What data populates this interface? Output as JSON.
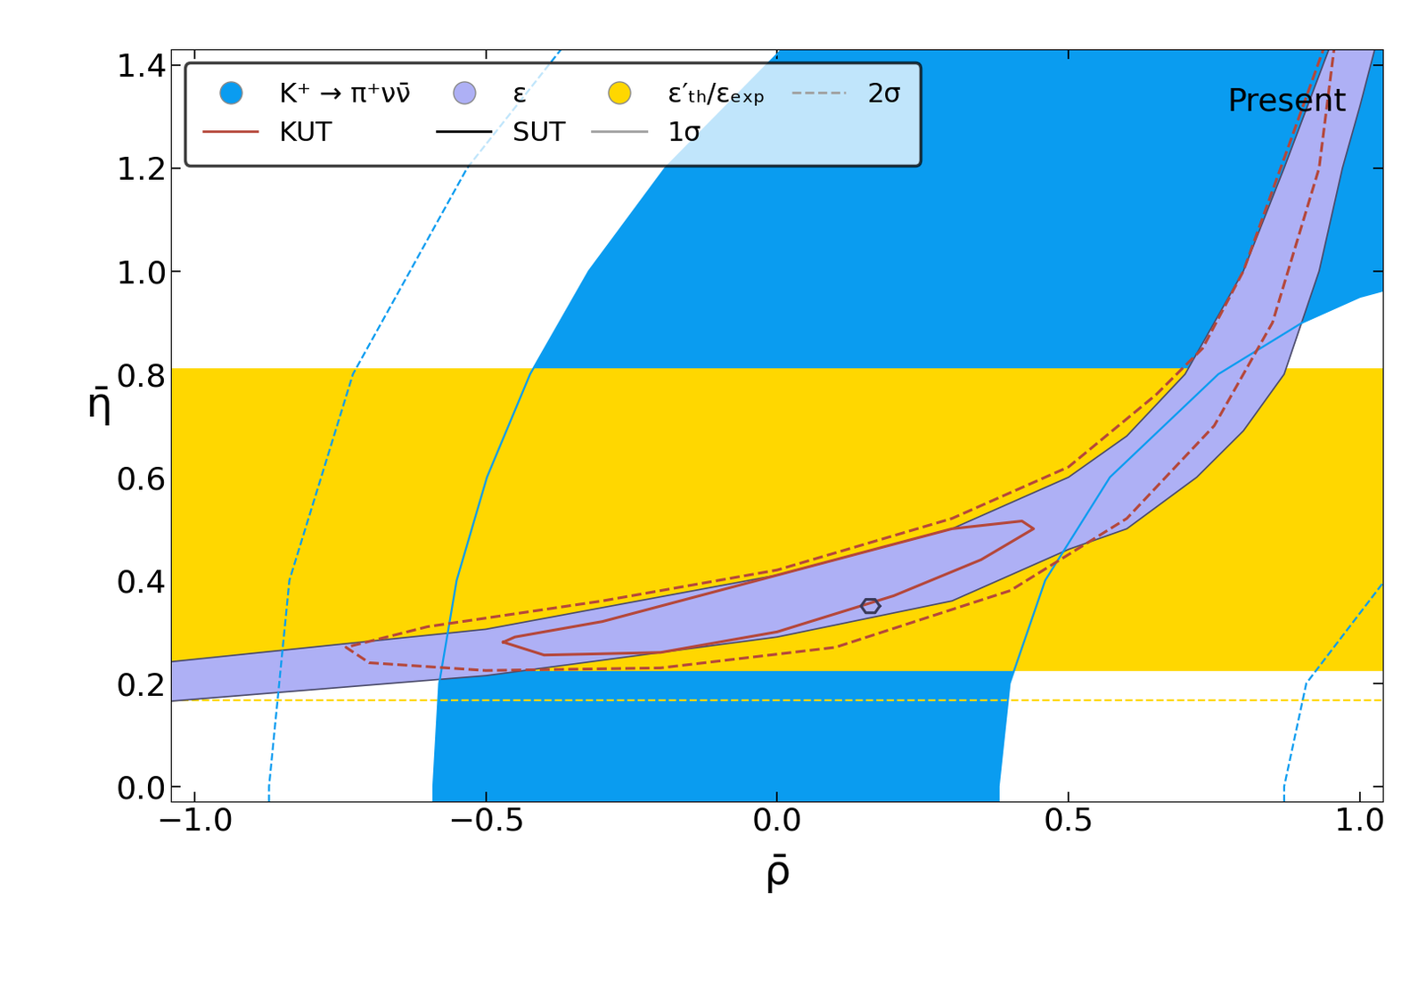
{
  "chart_data": {
    "type": "region",
    "xlabel": "ρ̄",
    "ylabel": "η̄",
    "xlim": [
      -1.04,
      1.04
    ],
    "ylim": [
      -0.03,
      1.43
    ],
    "xticks": [
      {
        "value": -1.0,
        "label": "−1.0"
      },
      {
        "value": -0.5,
        "label": "−0.5"
      },
      0.0,
      0.5,
      1.0
    ],
    "yticks": [
      0.0,
      0.2,
      0.4,
      0.6,
      0.8,
      1.0,
      1.2,
      1.4
    ],
    "annotation": "Present",
    "legend": "upper left",
    "line_styles_legend": [
      {
        "name": "1σ",
        "line_style": "solid"
      },
      {
        "name": "2σ",
        "line_style": "dashed"
      }
    ],
    "series": [
      {
        "name": "K⁺ → π⁺νν̄",
        "type": "annulus_band",
        "color": "#0a9cf0",
        "outer_1sigma": {
          "x": [
            -0.59,
            -0.59,
            -0.58,
            -0.55,
            -0.498,
            -0.424,
            -0.323,
            -0.192,
            0.008,
            0.205,
            0.528,
            1.24
          ],
          "y": [
            -0.05,
            0.0,
            0.2,
            0.4,
            0.6,
            0.8,
            1.0,
            1.2,
            1.43,
            1.6,
            1.8,
            2.0
          ]
        },
        "inner_1sigma": {
          "x": [
            0.38,
            0.38,
            0.399,
            0.46,
            0.571,
            0.757,
            0.901,
            1.0,
            1.228
          ],
          "y": [
            -0.05,
            0.0,
            0.2,
            0.4,
            0.6,
            0.8,
            0.9,
            0.95,
            1.02
          ]
        },
        "outer_2sigma": {
          "x": [
            -0.872,
            -0.872,
            -0.837,
            -0.728,
            -0.532,
            -0.371
          ],
          "y": [
            -0.05,
            0.0,
            0.4,
            0.8,
            1.2,
            1.43
          ]
        },
        "inner_2sigma": {
          "x": [
            0.87,
            0.87,
            0.908,
            1.043
          ],
          "y": [
            -0.05,
            0.0,
            0.2,
            0.4
          ]
        }
      },
      {
        "name": "ε′ₜₕ/εₑₓₚ",
        "type": "hband",
        "color": "#ffd700",
        "band_1sigma": [
          0.225,
          0.81
        ],
        "lower_2sigma": 0.168
      },
      {
        "name": "ε",
        "type": "band",
        "color": "#aeb0f5",
        "lower": {
          "x": [
            -1.1,
            -0.5,
            0.0,
            0.3,
            0.5,
            0.6,
            0.72,
            0.8,
            0.87,
            0.93,
            0.97,
            1.0,
            1.03
          ],
          "y": [
            0.16,
            0.215,
            0.29,
            0.36,
            0.46,
            0.5,
            0.6,
            0.69,
            0.8,
            1.0,
            1.2,
            1.32,
            1.45
          ]
        },
        "upper": {
          "x": [
            -1.1,
            -0.5,
            0.0,
            0.3,
            0.5,
            0.6,
            0.7,
            0.8,
            0.87,
            0.92,
            0.96
          ],
          "y": [
            0.235,
            0.305,
            0.41,
            0.5,
            0.6,
            0.68,
            0.8,
            1.0,
            1.2,
            1.35,
            1.47
          ]
        }
      },
      {
        "name": "KUT",
        "type": "contour",
        "color": "#b5473a",
        "contour_1sigma": {
          "x": [
            -0.47,
            -0.4,
            -0.2,
            0.0,
            0.2,
            0.35,
            0.44,
            0.42,
            0.3,
            0.1,
            -0.1,
            -0.3,
            -0.45,
            -0.47
          ],
          "y": [
            0.28,
            0.255,
            0.26,
            0.3,
            0.37,
            0.44,
            0.5,
            0.515,
            0.5,
            0.44,
            0.38,
            0.32,
            0.29,
            0.28
          ]
        },
        "contour_2sigma": {
          "x": [
            0.96,
            0.93,
            0.85,
            0.75,
            0.6,
            0.4,
            0.1,
            -0.2,
            -0.5,
            -0.7,
            -0.74,
            -0.6,
            -0.3,
            0.0,
            0.3,
            0.5,
            0.65,
            0.73,
            0.8,
            0.88,
            0.95
          ],
          "y": [
            1.47,
            1.2,
            0.9,
            0.7,
            0.52,
            0.38,
            0.27,
            0.23,
            0.225,
            0.24,
            0.27,
            0.31,
            0.36,
            0.42,
            0.52,
            0.62,
            0.76,
            0.85,
            1.0,
            1.25,
            1.47
          ]
        }
      },
      {
        "name": "SUT",
        "type": "contour",
        "color": "#3a3a5a",
        "contour_1sigma": {
          "x": [
            0.176,
            0.168,
            0.152,
            0.144,
            0.152,
            0.168,
            0.176
          ],
          "y": [
            0.35,
            0.363,
            0.363,
            0.35,
            0.337,
            0.337,
            0.35
          ]
        }
      }
    ]
  }
}
